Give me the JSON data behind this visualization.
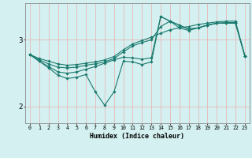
{
  "xlabel": "Humidex (Indice chaleur)",
  "background_color": "#d4f0f0",
  "grid_color": "#e8b8b8",
  "line_color": "#1a7a6e",
  "xlim": [
    -0.5,
    23.5
  ],
  "ylim": [
    1.75,
    3.55
  ],
  "yticks": [
    2,
    3
  ],
  "xticks": [
    0,
    1,
    2,
    3,
    4,
    5,
    6,
    7,
    8,
    9,
    10,
    11,
    12,
    13,
    14,
    15,
    16,
    17,
    18,
    19,
    20,
    21,
    22,
    23
  ],
  "series": [
    {
      "x": [
        0,
        1,
        2,
        3,
        4,
        5,
        6,
        7,
        8,
        9,
        10,
        11,
        12,
        13,
        14,
        15,
        16,
        17,
        18,
        19,
        20,
        21,
        22,
        23
      ],
      "y": [
        2.78,
        2.72,
        2.68,
        2.64,
        2.62,
        2.63,
        2.65,
        2.67,
        2.7,
        2.75,
        2.85,
        2.94,
        2.99,
        3.04,
        3.1,
        3.15,
        3.18,
        3.2,
        3.23,
        3.25,
        3.27,
        3.28,
        3.28,
        2.76
      ]
    },
    {
      "x": [
        0,
        1,
        2,
        3,
        4,
        5,
        6,
        7,
        8,
        9,
        10,
        11,
        12,
        13,
        14,
        15,
        16,
        17,
        18,
        19,
        20,
        21,
        22,
        23
      ],
      "y": [
        2.78,
        2.7,
        2.64,
        2.59,
        2.58,
        2.59,
        2.62,
        2.64,
        2.67,
        2.72,
        2.82,
        2.91,
        2.96,
        3.0,
        3.2,
        3.28,
        3.18,
        3.14,
        3.18,
        3.22,
        3.25,
        3.26,
        3.26,
        2.76
      ]
    },
    {
      "x": [
        0,
        1,
        2,
        3,
        4,
        5,
        6,
        7,
        8,
        9,
        10,
        11,
        12,
        13,
        14,
        15,
        16,
        17,
        18,
        19,
        20,
        21,
        22,
        23
      ],
      "y": [
        2.78,
        2.68,
        2.6,
        2.52,
        2.5,
        2.52,
        2.56,
        2.6,
        2.65,
        2.7,
        2.74,
        2.73,
        2.71,
        2.73,
        3.35,
        3.28,
        3.22,
        3.16,
        3.18,
        3.22,
        3.25,
        3.25,
        3.25,
        2.76
      ]
    },
    {
      "x": [
        0,
        1,
        2,
        3,
        4,
        5,
        6,
        7,
        8,
        9,
        10,
        11,
        12,
        13,
        14,
        15,
        16,
        17,
        18,
        19,
        20,
        21,
        22,
        23
      ],
      "y": [
        2.78,
        2.68,
        2.58,
        2.47,
        2.42,
        2.44,
        2.48,
        2.22,
        2.02,
        2.22,
        2.68,
        2.67,
        2.63,
        2.67,
        3.35,
        3.28,
        3.22,
        3.16,
        3.18,
        3.22,
        3.25,
        3.25,
        3.25,
        2.76
      ]
    }
  ]
}
